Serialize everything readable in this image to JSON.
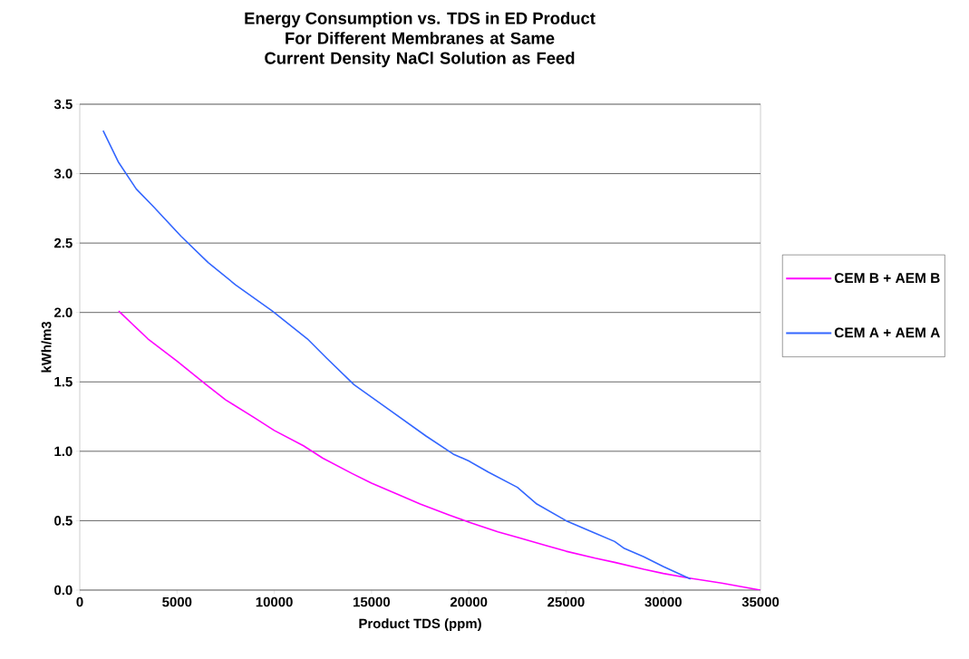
{
  "chart_data": {
    "type": "line",
    "title": "Energy Consumption vs. TDS in ED Product",
    "subtitle": "For Different Membranes at Same Current Density NaCl Solution as Feed",
    "xlabel": "Product TDS (ppm)",
    "ylabel": "kWh/m3",
    "xlim": [
      0,
      35000
    ],
    "xticks": [
      0,
      5000,
      10000,
      15000,
      20000,
      25000,
      30000,
      35000
    ],
    "ylim": [
      0,
      3.5
    ],
    "yticks": [
      {
        "value": 0,
        "label": "0.0"
      },
      {
        "value": 0.5,
        "label": "0.5"
      },
      {
        "value": 1,
        "label": "1.0"
      },
      {
        "value": 1.5,
        "label": "1.5"
      },
      {
        "value": 2,
        "label": "2.0"
      },
      {
        "value": 2.5,
        "label": "2.5"
      },
      {
        "value": 3,
        "label": "3.0"
      },
      {
        "value": 3.5,
        "label": "3.5"
      }
    ],
    "grid": "y",
    "legend": "right",
    "marker": "none",
    "line_style": "solid",
    "series": [
      {
        "name": "CEM B + AEM B",
        "color": "#ff00ff",
        "x": [
          2000,
          3500,
          5000,
          6500,
          7500,
          9000,
          10000,
          11500,
          12500,
          14000,
          15000,
          16500,
          17500,
          19000,
          20000,
          21500,
          22500,
          24000,
          25000,
          26500,
          27500,
          29000,
          30000,
          31400,
          33000,
          35000
        ],
        "values": [
          2.01,
          1.81,
          1.65,
          1.48,
          1.37,
          1.24,
          1.15,
          1.04,
          0.95,
          0.84,
          0.77,
          0.68,
          0.62,
          0.54,
          0.49,
          0.42,
          0.38,
          0.32,
          0.28,
          0.23,
          0.2,
          0.15,
          0.12,
          0.085,
          0.05,
          0.0
        ]
      },
      {
        "name": "CEM A + AEM A",
        "color": "#3366ff",
        "x": [
          1200,
          2000,
          2900,
          3800,
          5200,
          6600,
          8000,
          9900,
          11700,
          12700,
          14100,
          15900,
          17800,
          19200,
          20000,
          21000,
          22500,
          23500,
          25000,
          26500,
          27500,
          28000,
          29000,
          30000,
          31400
        ],
        "values": [
          3.31,
          3.08,
          2.89,
          2.76,
          2.55,
          2.36,
          2.2,
          2.01,
          1.81,
          1.67,
          1.48,
          1.3,
          1.11,
          0.98,
          0.93,
          0.85,
          0.74,
          0.62,
          0.5,
          0.41,
          0.35,
          0.3,
          0.24,
          0.17,
          0.08
        ]
      }
    ]
  }
}
